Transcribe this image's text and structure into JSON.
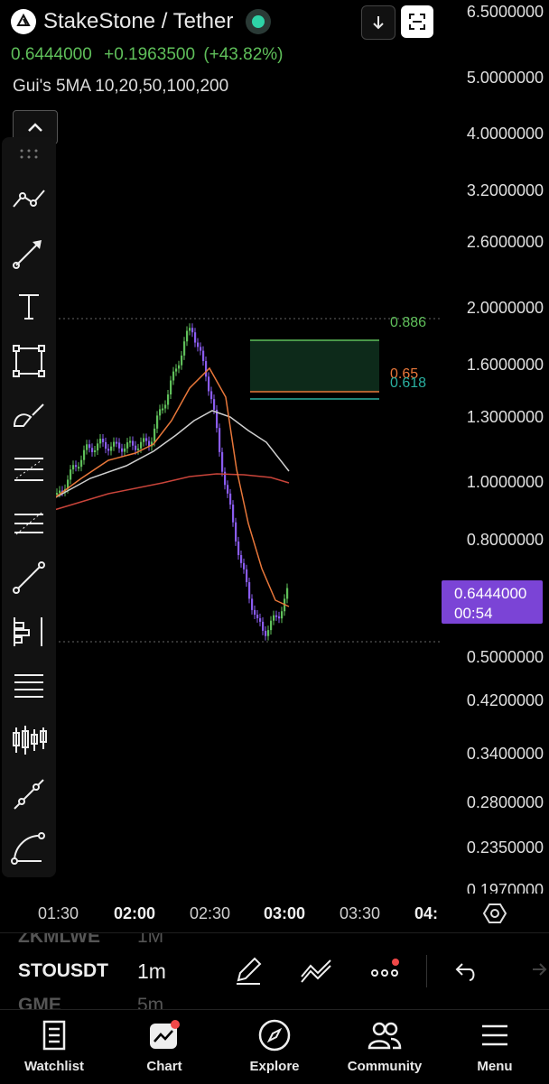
{
  "header": {
    "pair_title": "StakeStone / Tether",
    "last_price": "0.6444000",
    "change": "+0.1963500",
    "change_pct": "(+43.82%)",
    "indicator_label": "Gui's 5MA 10,20,50,100,200"
  },
  "y_axis": {
    "ticks": [
      "6.5000000",
      "5.0000000",
      "4.0000000",
      "3.2000000",
      "2.6000000",
      "2.0000000",
      "1.6000000",
      "1.3000000",
      "1.0000000",
      "0.8000000",
      "0.5000000",
      "0.4200000",
      "0.3400000",
      "0.2800000",
      "0.2350000",
      "0.1970000"
    ]
  },
  "price_tag": {
    "price": "0.6444000",
    "countdown": "00:54"
  },
  "fib_levels": {
    "l1": "0.886",
    "l2": "0.65",
    "l3": "0.618"
  },
  "x_axis": {
    "ticks": [
      "01:30",
      "02:00",
      "02:30",
      "03:00",
      "03:30",
      "04:"
    ]
  },
  "symbol_list": {
    "above": "ZKMLWE",
    "above_interval": "1M",
    "current": "STOUSDT",
    "current_interval": "1m",
    "below": "GME",
    "below_interval": "5m"
  },
  "nav": {
    "watchlist": "Watchlist",
    "chart": "Chart",
    "explore": "Explore",
    "community": "Community",
    "menu": "Menu"
  },
  "colors": {
    "up": "#5fbf5a",
    "down": "#8a5cf0",
    "accent": "#7b44d6",
    "ma_orange": "#e8773a",
    "ma_white": "#cfcfcf",
    "ma_red": "#c9443a"
  }
}
